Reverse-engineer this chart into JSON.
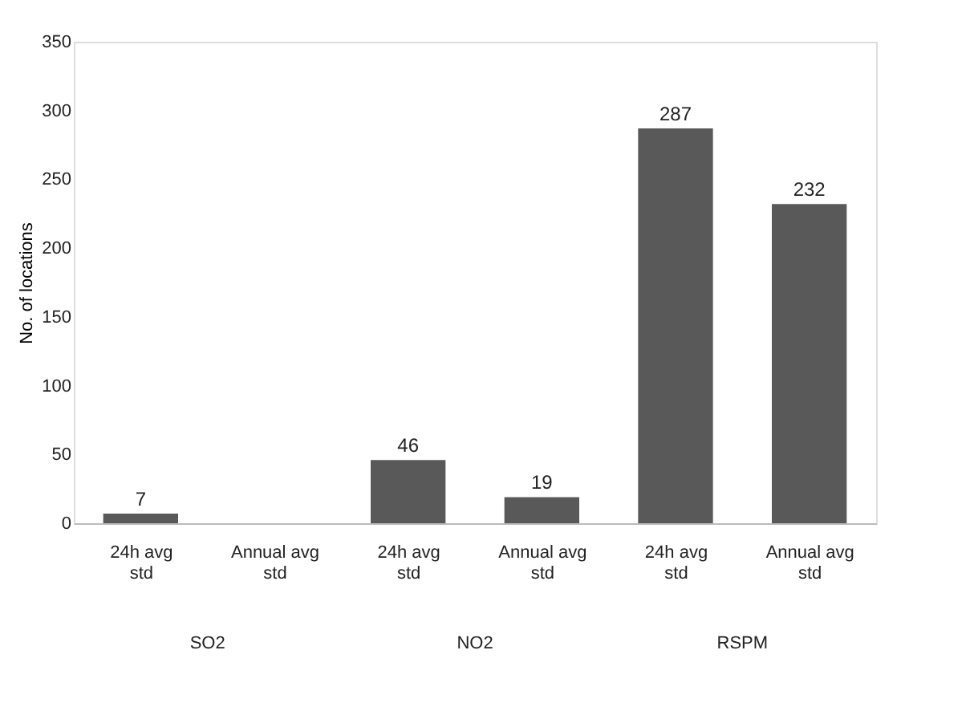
{
  "chart_data": {
    "type": "bar",
    "ylabel": "No. of locations",
    "categories": [
      "24h avg std",
      "Annual avg std",
      "24h avg std",
      "Annual avg std",
      "24h avg std",
      "Annual avg std"
    ],
    "values": [
      7,
      0,
      46,
      19,
      287,
      232
    ],
    "value_labels": [
      "7",
      null,
      "46",
      "19",
      "287",
      "232"
    ],
    "color": "#595959",
    "ylim": [
      0,
      350
    ],
    "yticks": [
      0,
      50,
      100,
      150,
      200,
      250,
      300,
      350
    ],
    "annotations": [
      "SO2",
      "NO2",
      "RSPM"
    ],
    "grid": false
  }
}
